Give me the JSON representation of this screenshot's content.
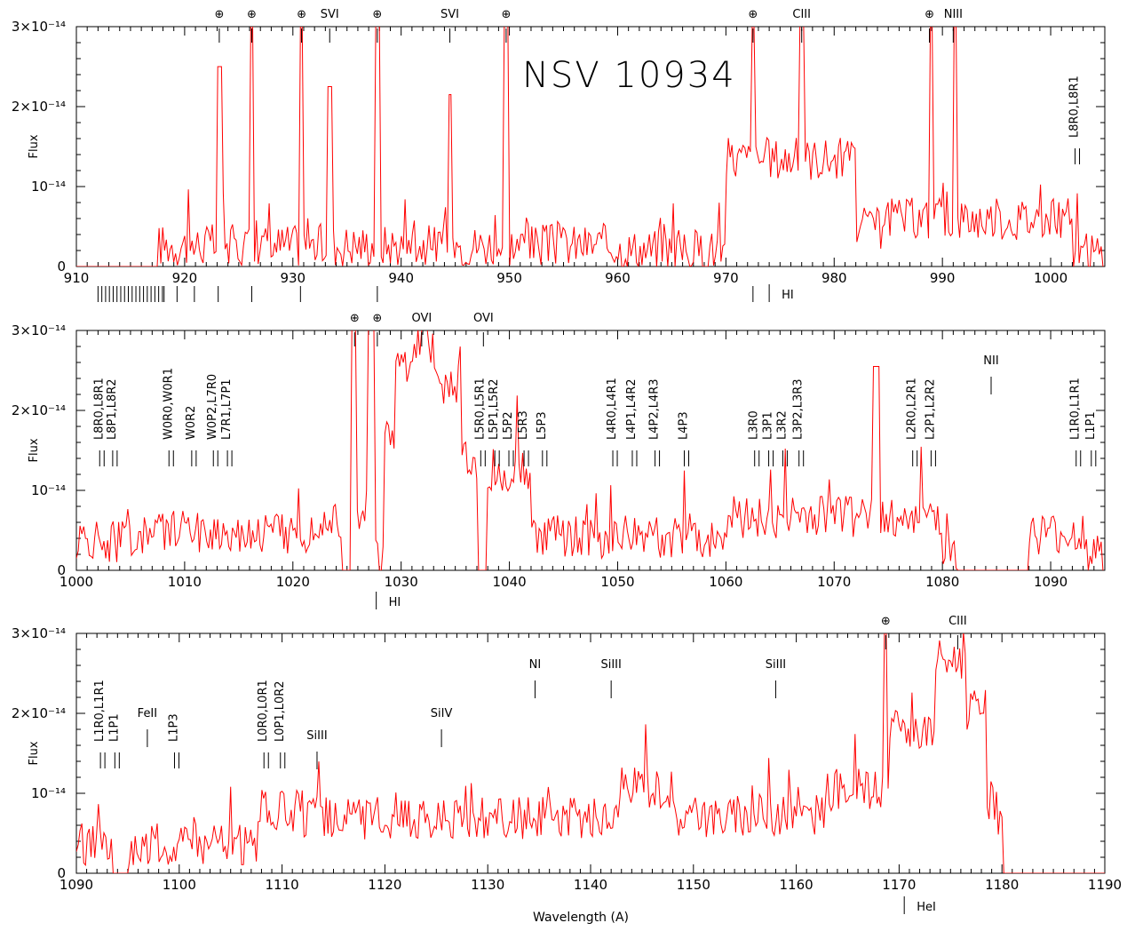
{
  "chart_data": [
    {
      "type": "line",
      "title": "NSV 10934",
      "ylabel": "Flux",
      "xlim": [
        910,
        1005
      ],
      "ylim": [
        0,
        3e-14
      ],
      "x_ticks": [
        "910",
        "920",
        "930",
        "940",
        "950",
        "960",
        "970",
        "980",
        "990",
        "1000"
      ],
      "y_ticks": [
        "0",
        "10⁻¹⁴",
        "2×10⁻¹⁴",
        "3×10⁻¹⁴"
      ],
      "top_labels": [
        {
          "x": 923.2,
          "text": "⊕"
        },
        {
          "x": 926.2,
          "text": "⊕"
        },
        {
          "x": 930.8,
          "text": "⊕"
        },
        {
          "x": 933.4,
          "text": "SVI"
        },
        {
          "x": 937.8,
          "text": "⊕"
        },
        {
          "x": 944.5,
          "text": "SVI"
        },
        {
          "x": 949.7,
          "text": "⊕"
        },
        {
          "x": 972.5,
          "text": "⊕"
        },
        {
          "x": 977.0,
          "text": "CIII"
        },
        {
          "x": 988.8,
          "text": "⊕"
        },
        {
          "x": 991.0,
          "text": "NIII"
        }
      ],
      "annotations": [
        {
          "x": 1002.5,
          "text": "L8R0,L8R1"
        },
        {
          "x": 974.0,
          "text": "HI"
        }
      ],
      "peaks": [
        {
          "x": 923.2,
          "y": 2.5e-14
        },
        {
          "x": 926.2,
          "y": 3.3e-14
        },
        {
          "x": 930.8,
          "y": 3.3e-14
        },
        {
          "x": 933.4,
          "y": 2.25e-14
        },
        {
          "x": 937.8,
          "y": 3.3e-14
        },
        {
          "x": 944.5,
          "y": 2.15e-14
        },
        {
          "x": 949.7,
          "y": 3.3e-14
        },
        {
          "x": 972.5,
          "y": 3.3e-14
        },
        {
          "x": 977.0,
          "y": 3.3e-14
        },
        {
          "x": 989.0,
          "y": 3.3e-14
        },
        {
          "x": 991.2,
          "y": 3.3e-14
        }
      ]
    },
    {
      "type": "line",
      "ylabel": "Flux",
      "xlim": [
        1000,
        1095
      ],
      "ylim": [
        0,
        3e-14
      ],
      "x_ticks": [
        "1000",
        "1010",
        "1020",
        "1030",
        "1040",
        "1050",
        "1060",
        "1070",
        "1080",
        "1090"
      ],
      "y_ticks": [
        "0",
        "10⁻¹⁴",
        "2×10⁻¹⁴",
        "3×10⁻¹⁴"
      ],
      "top_labels": [
        {
          "x": 1025.7,
          "text": "⊕"
        },
        {
          "x": 1027.8,
          "text": "⊕"
        },
        {
          "x": 1031.9,
          "text": "OVI"
        },
        {
          "x": 1037.6,
          "text": "OVI"
        }
      ],
      "annotations": [
        {
          "x": 1002.4,
          "text": "L8R0,L8R1"
        },
        {
          "x": 1003.6,
          "text": "L8P1,L8R2"
        },
        {
          "x": 1008.8,
          "text": "W0R0,W0R1"
        },
        {
          "x": 1010.9,
          "text": "W0R2"
        },
        {
          "x": 1012.9,
          "text": "W0P2,L7R0"
        },
        {
          "x": 1014.2,
          "text": "L7R1,L7P1"
        },
        {
          "x": 1037.6,
          "text": "L5R0,L5R1"
        },
        {
          "x": 1038.9,
          "text": "L5P1,L5R2"
        },
        {
          "x": 1040.2,
          "text": "L5P2"
        },
        {
          "x": 1041.6,
          "text": "L5R3"
        },
        {
          "x": 1043.3,
          "text": "L5P3"
        },
        {
          "x": 1049.8,
          "text": "L4R0,L4R1"
        },
        {
          "x": 1051.6,
          "text": "L4P1,L4R2"
        },
        {
          "x": 1053.7,
          "text": "L4P2,L4R3"
        },
        {
          "x": 1056.4,
          "text": "L4P3"
        },
        {
          "x": 1062.9,
          "text": "L3R0"
        },
        {
          "x": 1064.2,
          "text": "L3P1"
        },
        {
          "x": 1065.5,
          "text": "L3R2"
        },
        {
          "x": 1067.0,
          "text": "L3P2,L3R3"
        },
        {
          "x": 1077.5,
          "text": "L2R0,L2R1"
        },
        {
          "x": 1079.2,
          "text": "L2P1,L2R2"
        },
        {
          "x": 1084.5,
          "text": "NII"
        },
        {
          "x": 1092.6,
          "text": "L1R0,L1R1"
        },
        {
          "x": 1094.0,
          "text": "L1P1"
        },
        {
          "x": 1027.7,
          "text": "HI"
        }
      ]
    },
    {
      "type": "line",
      "xlabel": "Wavelength (A)",
      "ylabel": "Flux",
      "xlim": [
        1090,
        1190
      ],
      "ylim": [
        0,
        3e-14
      ],
      "x_ticks": [
        "1090",
        "1100",
        "1110",
        "1120",
        "1130",
        "1140",
        "1150",
        "1160",
        "1170",
        "1180",
        "1190"
      ],
      "y_ticks": [
        "0",
        "10⁻¹⁴",
        "2×10⁻¹⁴",
        "3×10⁻¹⁴"
      ],
      "top_labels": [
        {
          "x": 1168.7,
          "text": "⊕"
        },
        {
          "x": 1175.7,
          "text": "CIII"
        }
      ],
      "annotations": [
        {
          "x": 1092.6,
          "text": "L1R0,L1R1"
        },
        {
          "x": 1094.0,
          "text": "L1P1"
        },
        {
          "x": 1096.9,
          "text": "FeII"
        },
        {
          "x": 1099.8,
          "text": "L1P3"
        },
        {
          "x": 1108.5,
          "text": "L0R0,L0R1"
        },
        {
          "x": 1110.1,
          "text": "L0P1,L0R2"
        },
        {
          "x": 1113.4,
          "text": "SiIII"
        },
        {
          "x": 1125.5,
          "text": "SiIV"
        },
        {
          "x": 1134.6,
          "text": "NI"
        },
        {
          "x": 1142.0,
          "text": "SiIII"
        },
        {
          "x": 1158.0,
          "text": "SiIII"
        },
        {
          "x": 1170.5,
          "text": "HeI"
        }
      ]
    }
  ]
}
